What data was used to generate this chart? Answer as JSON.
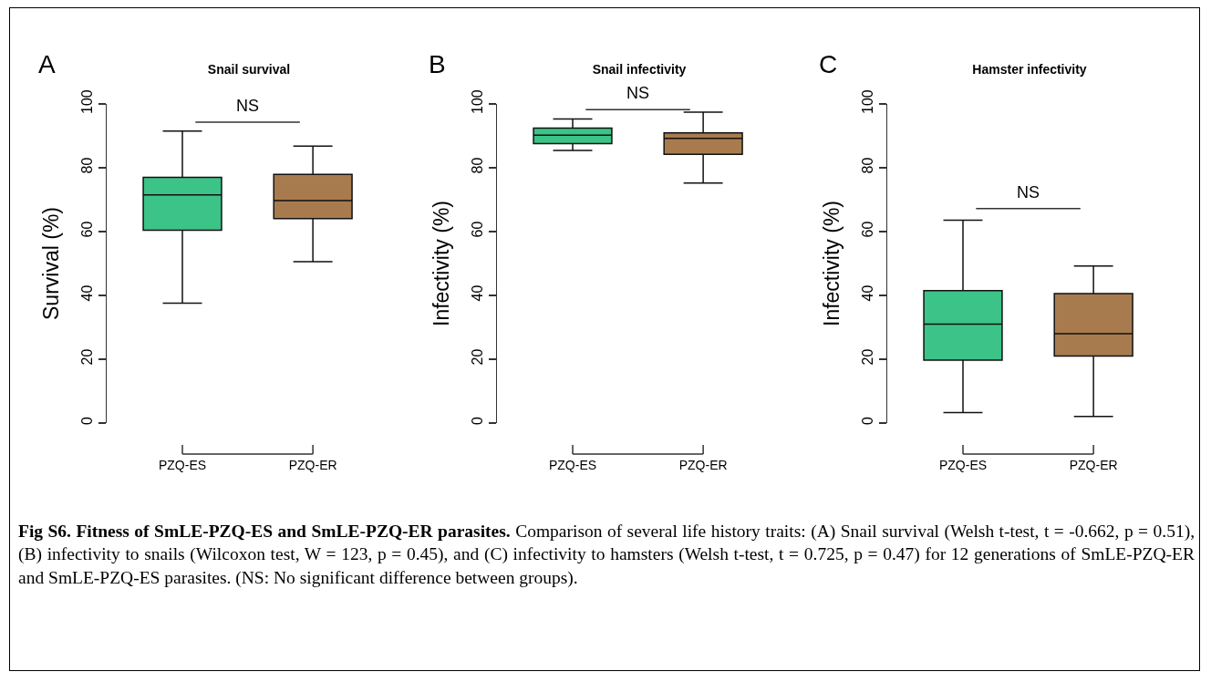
{
  "chart_data": [
    {
      "type": "box",
      "title": "Snail survival",
      "ylabel": "Survival (%)",
      "categories": [
        "PZQ-ES",
        "PZQ-ER"
      ],
      "colors": [
        "#3cc387",
        "#a87b4f"
      ],
      "boxes": [
        {
          "low": 37.6,
          "q1": 60.4,
          "median": 71.5,
          "q3": 77,
          "high": 91.5
        },
        {
          "low": 50.6,
          "q1": 64.1,
          "median": 69.7,
          "q3": 77.9,
          "high": 86.8
        }
      ],
      "ylim": [
        0,
        100
      ],
      "yticks": [
        0,
        20,
        40,
        60,
        80,
        100
      ],
      "annotations": [
        "A"
      ],
      "ref_lines": [
        {
          "axis": "y",
          "value": 94.3,
          "label": "NS"
        }
      ]
    },
    {
      "type": "box",
      "title": "Snail infectivity",
      "ylabel": "Infectivity (%)",
      "categories": [
        "PZQ-ES",
        "PZQ-ER"
      ],
      "colors": [
        "#3cc387",
        "#a87b4f"
      ],
      "boxes": [
        {
          "low": 85.4,
          "q1": 87.6,
          "median": 90.2,
          "q3": 92.4,
          "high": 95.3
        },
        {
          "low": 75.2,
          "q1": 84.2,
          "median": 89.2,
          "q3": 90.9,
          "high": 97.4
        }
      ],
      "ylim": [
        0,
        100
      ],
      "yticks": [
        0,
        20,
        40,
        60,
        80,
        100
      ],
      "annotations": [
        "B"
      ],
      "ref_lines": [
        {
          "axis": "y",
          "value": 98.2,
          "label": "NS"
        }
      ]
    },
    {
      "type": "box",
      "title": "Hamster infectivity",
      "ylabel": "Infectivity (%)",
      "categories": [
        "PZQ-ES",
        "PZQ-ER"
      ],
      "colors": [
        "#3cc387",
        "#a87b4f"
      ],
      "boxes": [
        {
          "low": 3.3,
          "q1": 19.7,
          "median": 31,
          "q3": 41.5,
          "high": 63.6
        },
        {
          "low": 2.1,
          "q1": 21,
          "median": 28,
          "q3": 40.6,
          "high": 49.2
        }
      ],
      "ylim": [
        0,
        100
      ],
      "yticks": [
        0,
        20,
        40,
        60,
        80,
        100
      ],
      "annotations": [
        "C"
      ],
      "ref_lines": [
        {
          "axis": "y",
          "value": 67.2,
          "label": "NS"
        }
      ]
    },
    {
      "type": "other",
      "title": "Fig S6. Fitness of SmLE-PZQ-ES and SmLE-PZQ-ER parasites.",
      "annotations": [
        "Comparison of several life history traits: (A) Snail survival (Welsh t-test, t = -0.662, p = 0.51), (B) infectivity to snails (Wilcoxon test, W = 123, p = 0.45), and (C) infectivity to hamsters (Welsh t-test, t = 0.725, p = 0.47) for 12 generations of SmLE-PZQ-ER and SmLE-PZQ-ES parasites. (NS: No significant difference between groups)."
      ]
    }
  ]
}
